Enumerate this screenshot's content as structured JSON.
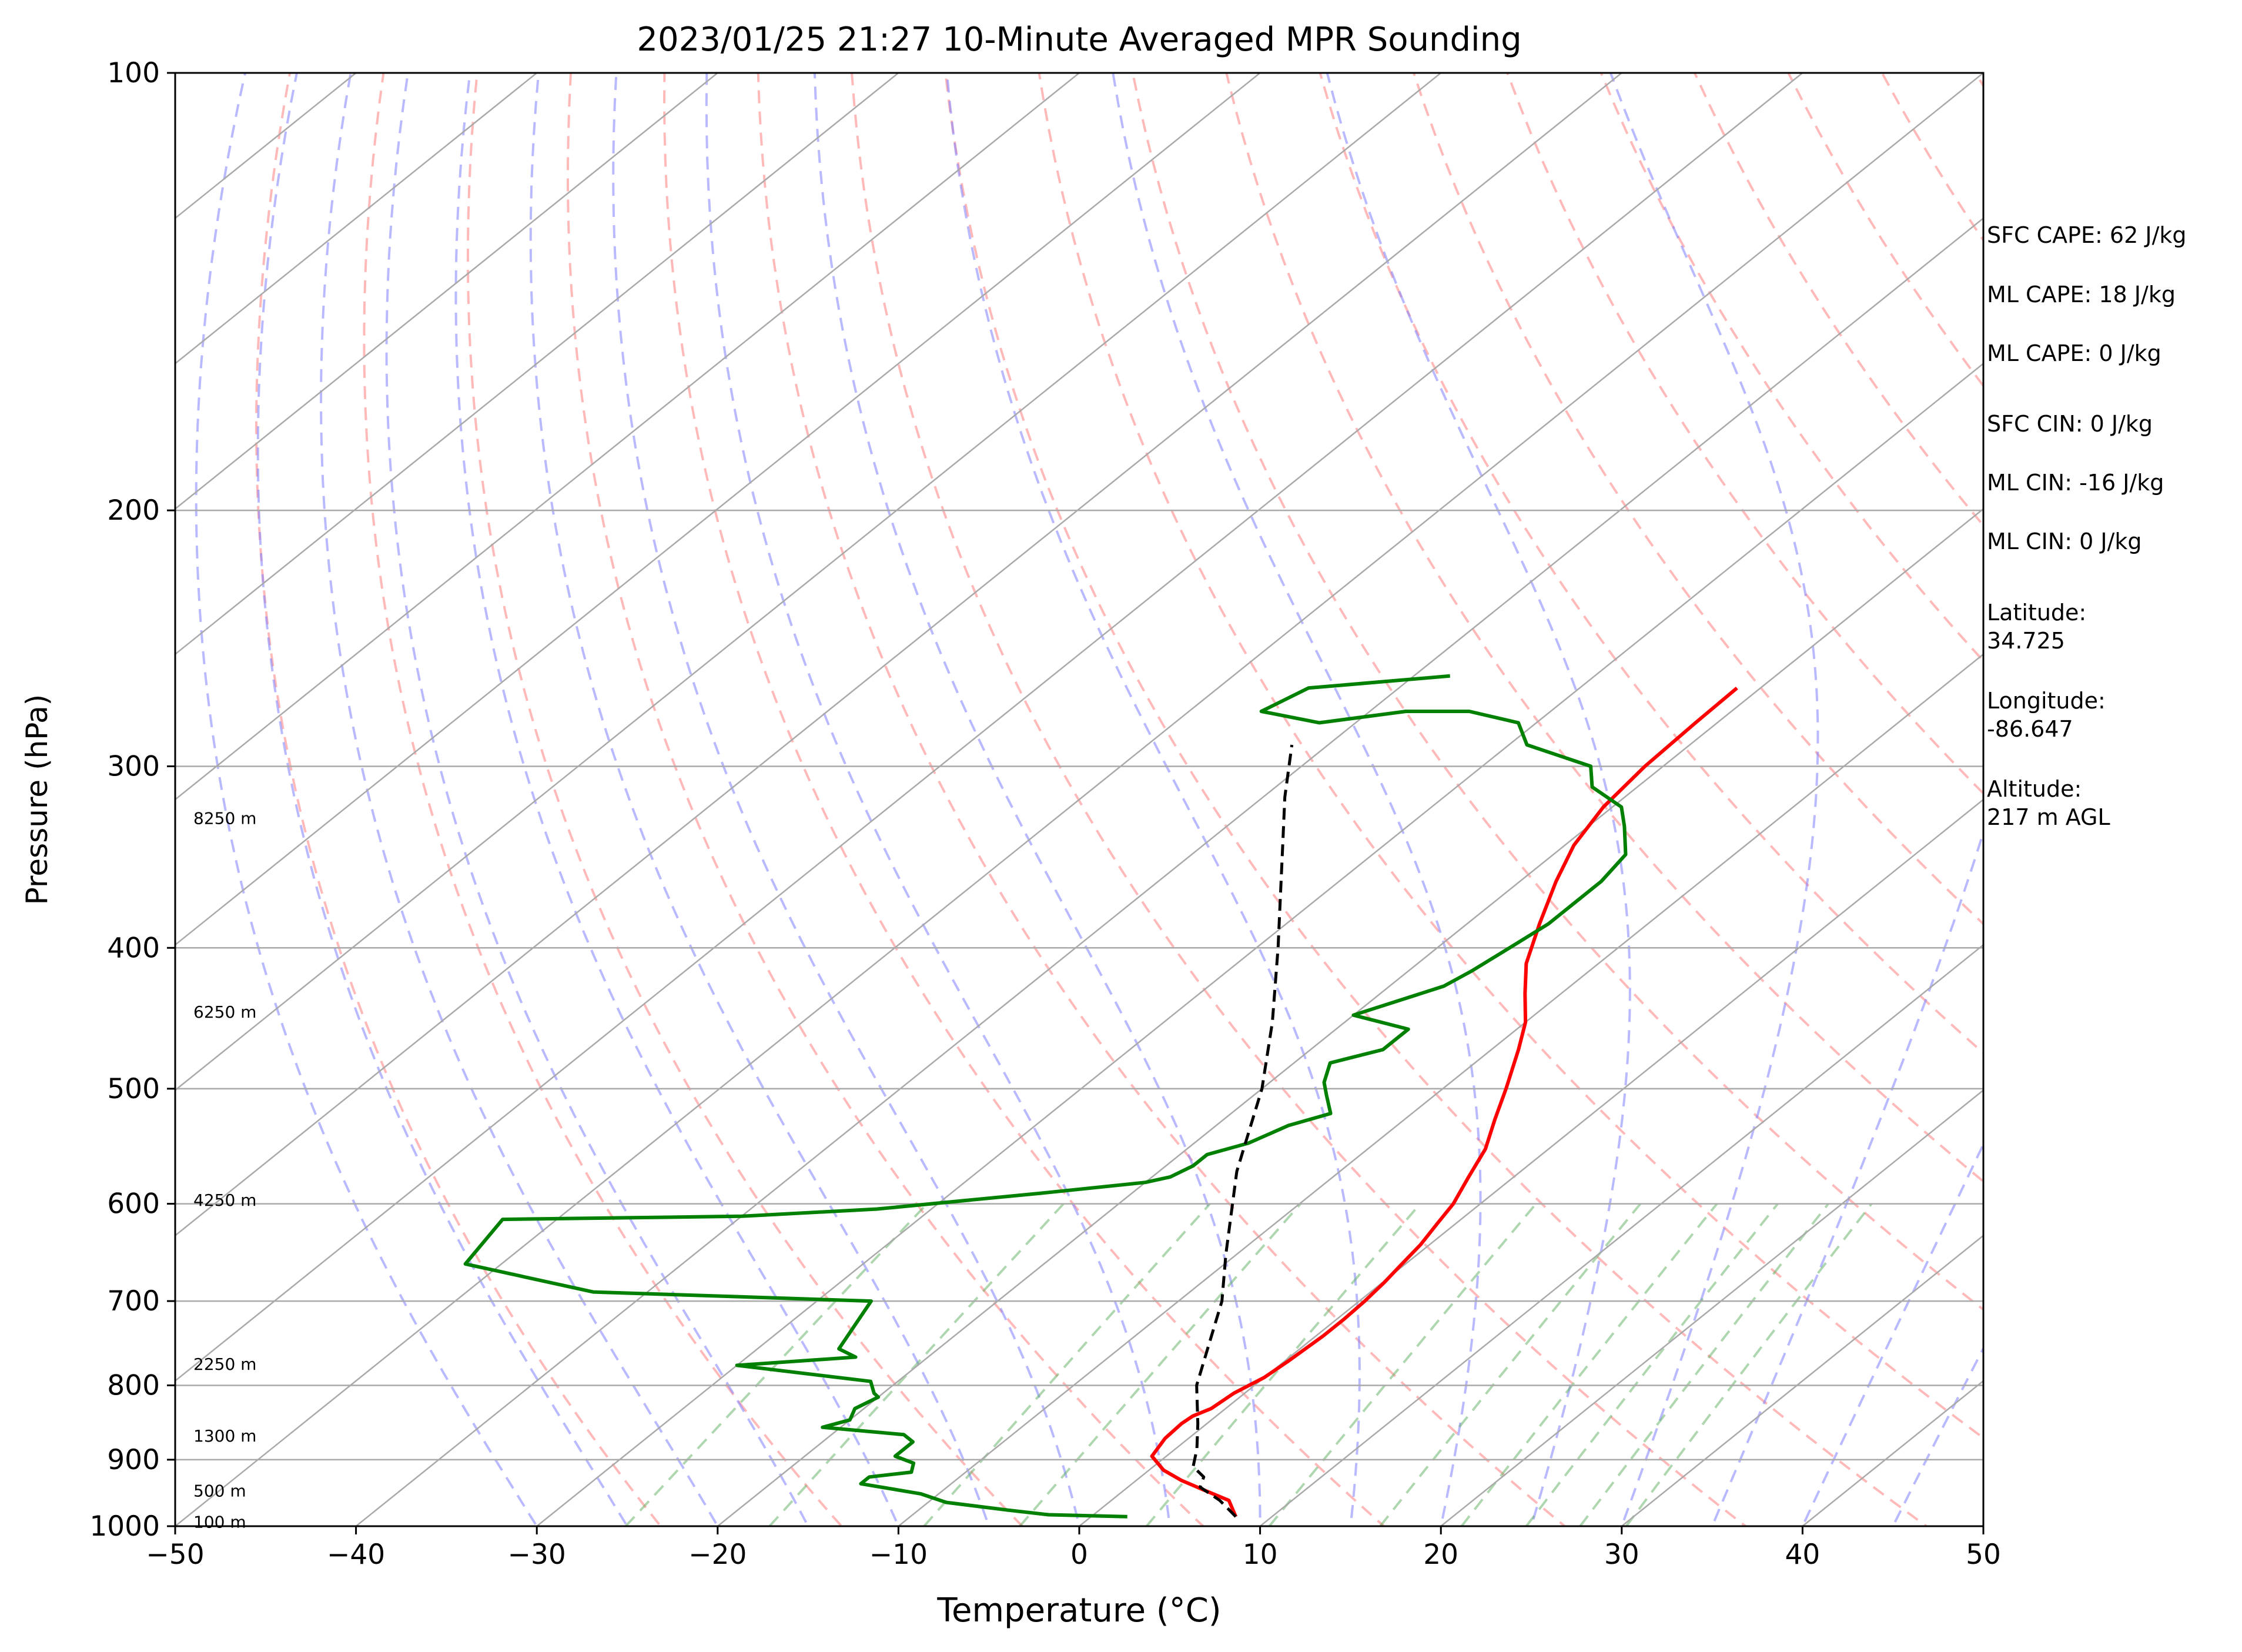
{
  "chart_data": {
    "type": "line",
    "title": "2023/01/25 21:27 10-Minute Averaged MPR Sounding",
    "xlabel": "Temperature (°C)",
    "ylabel": "Pressure (hPa)",
    "xlim": [
      -50,
      50
    ],
    "ylim": [
      1000,
      100
    ],
    "y_scale": "log",
    "skew": "skew-T log-P",
    "x_ticks": [
      "−50",
      "−40",
      "−30",
      "−20",
      "−10",
      "0",
      "10",
      "20",
      "30",
      "40",
      "50"
    ],
    "y_ticks": [
      "100",
      "200",
      "300",
      "400",
      "500",
      "600",
      "700",
      "800",
      "900",
      "1000"
    ],
    "grid": true,
    "series": [
      {
        "color": "#ff0000",
        "x": [
          8.0,
          6.5,
          4.5,
          2.5,
          0.8,
          -0.8,
          -1.3,
          -1.4,
          -1.3,
          -0.8,
          -0.6,
          0.0,
          0.2,
          0.4,
          0.4,
          0.3,
          0.1,
          -0.2,
          -0.5,
          -1.0,
          -1.5,
          -2.5,
          -3.5,
          -5.0,
          -6.5,
          -8.5,
          -10.0,
          -12.0,
          -14.0,
          -16.0,
          -18.0,
          -19.5,
          -20.5,
          -21.0,
          -21.2,
          -21.3
        ],
        "y": [
          985,
          960,
          945,
          930,
          915,
          895,
          870,
          850,
          840,
          830,
          810,
          790,
          770,
          740,
          720,
          700,
          680,
          660,
          640,
          620,
          600,
          575,
          550,
          525,
          500,
          470,
          450,
          430,
          410,
          385,
          360,
          340,
          320,
          300,
          280,
          265
        ]
      },
      {
        "color": "#008000",
        "x": [
          2.0,
          -2.5,
          -5.0,
          -9.0,
          -11.0,
          -15.0,
          -15.0,
          -13.0,
          -13.5,
          -15.0,
          -15.0,
          -16.0,
          -21.0,
          -20.0,
          -20.5,
          -20.0,
          -20.5,
          -21.5,
          -30.0,
          -24.0,
          -25.5,
          -27.0,
          -43.0,
          -52.0,
          -53.0,
          -40.0,
          -33.0,
          -25.0,
          -20.0,
          -19.0,
          -18.5,
          -18.5,
          -17.0,
          -16.0,
          -14.5,
          -16.0,
          -17.0,
          -18.0,
          -16.0,
          -16.0,
          -20.0,
          -17.0,
          -16.5,
          -16.0,
          -15.5,
          -15.5,
          -15.5,
          -16.0,
          -18.0,
          -19.5,
          -22.5,
          -24.0,
          -29.0,
          -31.0,
          -34.5,
          -38.0,
          -42.0,
          -46.0,
          -45.0,
          -38.0
        ],
        "y": [
          985,
          982,
          975,
          963,
          950,
          935,
          925,
          918,
          905,
          895,
          875,
          865,
          855,
          845,
          830,
          815,
          810,
          795,
          775,
          765,
          755,
          700,
          690,
          660,
          615,
          612,
          605,
          590,
          580,
          575,
          565,
          555,
          545,
          530,
          520,
          505,
          495,
          480,
          470,
          455,
          445,
          425,
          415,
          400,
          385,
          370,
          360,
          345,
          330,
          320,
          310,
          300,
          290,
          280,
          275,
          275,
          280,
          275,
          265,
          260
        ]
      },
      {
        "color": "#000000",
        "dashed": true,
        "x": [
          8.0,
          6.0,
          4.0,
          3.5,
          2.2,
          1.2,
          -0.5,
          -3.2,
          -7.6,
          -10.6,
          -15.7,
          -20.0,
          -24.0,
          -28.8,
          -35.6,
          -38.8,
          -42.0
        ],
        "y": [
          985,
          960,
          940,
          925,
          910,
          885,
          850,
          800,
          700,
          650,
          570,
          500,
          450,
          400,
          340,
          315,
          290
        ]
      }
    ],
    "height_labels": [
      "100 m",
      "500 m",
      "1300 m",
      "2250 m",
      "4250 m",
      "6250 m",
      "8250 m"
    ],
    "height_pressures": [
      994,
      946,
      867,
      774,
      597,
      443,
      326
    ],
    "annotations": [
      "SFC CAPE: 62 J/kg",
      "ML CAPE: 18 J/kg",
      "ML CAPE: 0 J/kg",
      "SFC CIN: 0 J/kg",
      "ML CIN: -16 J/kg",
      "ML CIN: 0 J/kg",
      "Latitude:\n34.725",
      "Longitude:\n-86.647",
      "Altitude:\n217 m AGL"
    ],
    "colors": {
      "isotherm": "#a9a9a9",
      "dry_adiabat": "#ff8080",
      "moist_adiabat": "#8080ff",
      "mixing_ratio": "#60b060"
    }
  }
}
